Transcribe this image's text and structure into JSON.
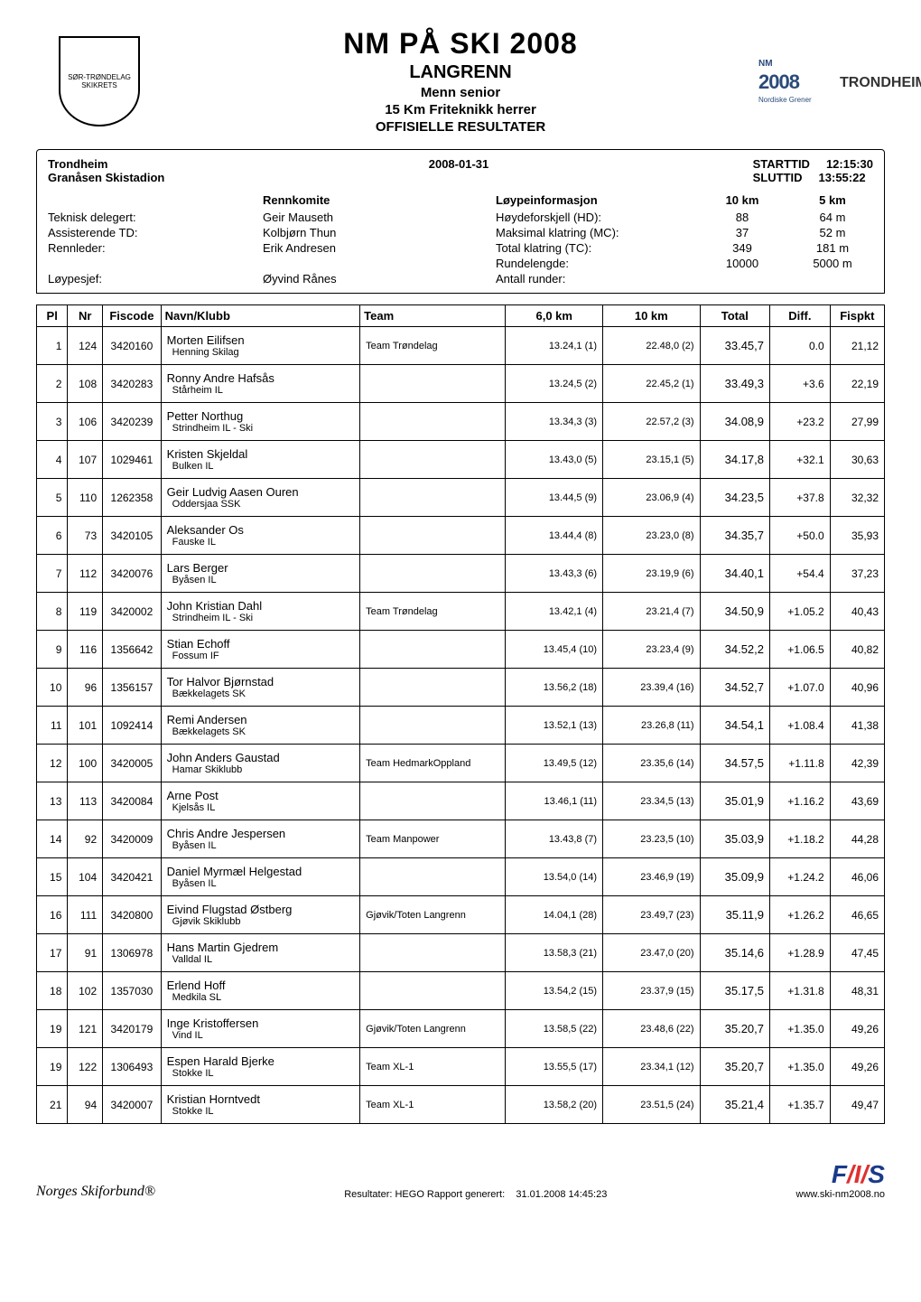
{
  "header": {
    "title_main": "NM PÅ SKI 2008",
    "title_sub": "LANGRENN",
    "title_sub2": "Menn senior",
    "title_sub3": "15 Km Friteknikk herrer",
    "title_sub4": "OFFISIELLE RESULTATER",
    "logo_left_text": "SØR-TRØNDELAG SKIKRETS",
    "logo_right_year": "2008",
    "logo_right_nm": "NM",
    "logo_right_sub": "Nordiske Grener",
    "logo_right_city": "TRONDHEIM"
  },
  "meta": {
    "venue_city": "Trondheim",
    "venue_stadium": "Granåsen Skistadion",
    "date": "2008-01-31",
    "start_label": "STARTTID",
    "start_time": "12:15:30",
    "end_label": "SLUTTID",
    "end_time": "13:55:22",
    "rennkomite_label": "Rennkomite",
    "loype_label": "Løypeinformasjon",
    "col_10km": "10 km",
    "col_5km": "5 km",
    "roles": [
      {
        "role": "Teknisk delegert:",
        "name": "Geir Mauseth"
      },
      {
        "role": "Assisterende TD:",
        "name": "Kolbjørn Thun"
      },
      {
        "role": "Rennleder:",
        "name": "Erik Andresen"
      },
      {
        "role": "",
        "name": ""
      },
      {
        "role": "Løypesjef:",
        "name": "Øyvind Rånes"
      }
    ],
    "course": [
      {
        "label": "Høydeforskjell (HD):",
        "v10": "88",
        "v5": "64 m"
      },
      {
        "label": "Maksimal klatring (MC):",
        "v10": "37",
        "v5": "52 m"
      },
      {
        "label": "Total klatring (TC):",
        "v10": "349",
        "v5": "181 m"
      },
      {
        "label": "Rundelengde:",
        "v10": "10000",
        "v5": "5000 m"
      },
      {
        "label": "Antall runder:",
        "v10": "",
        "v5": ""
      }
    ]
  },
  "columns": {
    "pl": "Pl",
    "nr": "Nr",
    "fis": "Fiscode",
    "name": "Navn/Klubb",
    "team": "Team",
    "s6": "6,0 km",
    "s10": "10 km",
    "total": "Total",
    "diff": "Diff.",
    "fispkt": "Fispkt"
  },
  "rows": [
    {
      "pl": "1",
      "nr": "124",
      "fis": "3420160",
      "name": "Morten Eilifsen",
      "club": "Henning Skilag",
      "team": "Team Trøndelag",
      "s6": "13.24,1 (1)",
      "s10": "22.48,0 (2)",
      "total": "33.45,7",
      "diff": "0.0",
      "fispkt": "21,12"
    },
    {
      "pl": "2",
      "nr": "108",
      "fis": "3420283",
      "name": "Ronny Andre Hafsås",
      "club": "Stårheim IL",
      "team": "",
      "s6": "13.24,5 (2)",
      "s10": "22.45,2 (1)",
      "total": "33.49,3",
      "diff": "+3.6",
      "fispkt": "22,19"
    },
    {
      "pl": "3",
      "nr": "106",
      "fis": "3420239",
      "name": "Petter Northug",
      "club": "Strindheim IL - Ski",
      "team": "",
      "s6": "13.34,3 (3)",
      "s10": "22.57,2 (3)",
      "total": "34.08,9",
      "diff": "+23.2",
      "fispkt": "27,99"
    },
    {
      "pl": "4",
      "nr": "107",
      "fis": "1029461",
      "name": "Kristen Skjeldal",
      "club": "Bulken IL",
      "team": "",
      "s6": "13.43,0 (5)",
      "s10": "23.15,1 (5)",
      "total": "34.17,8",
      "diff": "+32.1",
      "fispkt": "30,63"
    },
    {
      "pl": "5",
      "nr": "110",
      "fis": "1262358",
      "name": "Geir Ludvig Aasen Ouren",
      "club": "Oddersjaa SSK",
      "team": "",
      "s6": "13.44,5 (9)",
      "s10": "23.06,9 (4)",
      "total": "34.23,5",
      "diff": "+37.8",
      "fispkt": "32,32"
    },
    {
      "pl": "6",
      "nr": "73",
      "fis": "3420105",
      "name": "Aleksander Os",
      "club": "Fauske IL",
      "team": "",
      "s6": "13.44,4 (8)",
      "s10": "23.23,0 (8)",
      "total": "34.35,7",
      "diff": "+50.0",
      "fispkt": "35,93"
    },
    {
      "pl": "7",
      "nr": "112",
      "fis": "3420076",
      "name": "Lars Berger",
      "club": "Byåsen IL",
      "team": "",
      "s6": "13.43,3 (6)",
      "s10": "23.19,9 (6)",
      "total": "34.40,1",
      "diff": "+54.4",
      "fispkt": "37,23"
    },
    {
      "pl": "8",
      "nr": "119",
      "fis": "3420002",
      "name": "John Kristian Dahl",
      "club": "Strindheim IL - Ski",
      "team": "Team Trøndelag",
      "s6": "13.42,1 (4)",
      "s10": "23.21,4 (7)",
      "total": "34.50,9",
      "diff": "+1.05.2",
      "fispkt": "40,43"
    },
    {
      "pl": "9",
      "nr": "116",
      "fis": "1356642",
      "name": "Stian Echoff",
      "club": "Fossum IF",
      "team": "",
      "s6": "13.45,4 (10)",
      "s10": "23.23,4 (9)",
      "total": "34.52,2",
      "diff": "+1.06.5",
      "fispkt": "40,82"
    },
    {
      "pl": "10",
      "nr": "96",
      "fis": "1356157",
      "name": "Tor Halvor Bjørnstad",
      "club": "Bækkelagets SK",
      "team": "",
      "s6": "13.56,2 (18)",
      "s10": "23.39,4 (16)",
      "total": "34.52,7",
      "diff": "+1.07.0",
      "fispkt": "40,96"
    },
    {
      "pl": "11",
      "nr": "101",
      "fis": "1092414",
      "name": "Remi Andersen",
      "club": "Bækkelagets SK",
      "team": "",
      "s6": "13.52,1 (13)",
      "s10": "23.26,8 (11)",
      "total": "34.54,1",
      "diff": "+1.08.4",
      "fispkt": "41,38"
    },
    {
      "pl": "12",
      "nr": "100",
      "fis": "3420005",
      "name": "John Anders Gaustad",
      "club": "Hamar Skiklubb",
      "team": "Team HedmarkOppland",
      "s6": "13.49,5 (12)",
      "s10": "23.35,6 (14)",
      "total": "34.57,5",
      "diff": "+1.11.8",
      "fispkt": "42,39"
    },
    {
      "pl": "13",
      "nr": "113",
      "fis": "3420084",
      "name": "Arne Post",
      "club": "Kjelsås IL",
      "team": "",
      "s6": "13.46,1 (11)",
      "s10": "23.34,5 (13)",
      "total": "35.01,9",
      "diff": "+1.16.2",
      "fispkt": "43,69"
    },
    {
      "pl": "14",
      "nr": "92",
      "fis": "3420009",
      "name": "Chris Andre Jespersen",
      "club": "Byåsen IL",
      "team": "Team Manpower",
      "s6": "13.43,8 (7)",
      "s10": "23.23,5 (10)",
      "total": "35.03,9",
      "diff": "+1.18.2",
      "fispkt": "44,28"
    },
    {
      "pl": "15",
      "nr": "104",
      "fis": "3420421",
      "name": "Daniel Myrmæl Helgestad",
      "club": "Byåsen IL",
      "team": "",
      "s6": "13.54,0 (14)",
      "s10": "23.46,9 (19)",
      "total": "35.09,9",
      "diff": "+1.24.2",
      "fispkt": "46,06"
    },
    {
      "pl": "16",
      "nr": "111",
      "fis": "3420800",
      "name": "Eivind Flugstad Østberg",
      "club": "Gjøvik Skiklubb",
      "team": "Gjøvik/Toten Langrenn",
      "s6": "14.04,1 (28)",
      "s10": "23.49,7 (23)",
      "total": "35.11,9",
      "diff": "+1.26.2",
      "fispkt": "46,65"
    },
    {
      "pl": "17",
      "nr": "91",
      "fis": "1306978",
      "name": "Hans Martin Gjedrem",
      "club": "Valldal IL",
      "team": "",
      "s6": "13.58,3 (21)",
      "s10": "23.47,0 (20)",
      "total": "35.14,6",
      "diff": "+1.28.9",
      "fispkt": "47,45"
    },
    {
      "pl": "18",
      "nr": "102",
      "fis": "1357030",
      "name": "Erlend Hoff",
      "club": "Medkila SL",
      "team": "",
      "s6": "13.54,2 (15)",
      "s10": "23.37,9 (15)",
      "total": "35.17,5",
      "diff": "+1.31.8",
      "fispkt": "48,31"
    },
    {
      "pl": "19",
      "nr": "121",
      "fis": "3420179",
      "name": "Inge Kristoffersen",
      "club": "Vind IL",
      "team": "Gjøvik/Toten Langrenn",
      "s6": "13.58,5 (22)",
      "s10": "23.48,6 (22)",
      "total": "35.20,7",
      "diff": "+1.35.0",
      "fispkt": "49,26"
    },
    {
      "pl": "19",
      "nr": "122",
      "fis": "1306493",
      "name": "Espen Harald Bjerke",
      "club": "Stokke IL",
      "team": "Team XL-1",
      "s6": "13.55,5 (17)",
      "s10": "23.34,1 (12)",
      "total": "35.20,7",
      "diff": "+1.35.0",
      "fispkt": "49,26"
    },
    {
      "pl": "21",
      "nr": "94",
      "fis": "3420007",
      "name": "Kristian Horntvedt",
      "club": "Stokke IL",
      "team": "Team XL-1",
      "s6": "13.58,2 (20)",
      "s10": "23.51,5 (24)",
      "total": "35.21,4",
      "diff": "+1.35.7",
      "fispkt": "49,47"
    }
  ],
  "footer": {
    "left_text": "Norges Skiforbund®",
    "center_label": "Resultater: HEGO  Rapport generert:",
    "center_ts": "31.01.2008 14:45:23",
    "right_url": "www.ski-nm2008.no"
  },
  "style": {
    "background": "#ffffff",
    "text_color": "#000000",
    "border_color": "#000000",
    "fis_blue": "#1a3a8a",
    "fis_red": "#e03030",
    "title_fontsize": 32,
    "body_fontsize": 13
  }
}
